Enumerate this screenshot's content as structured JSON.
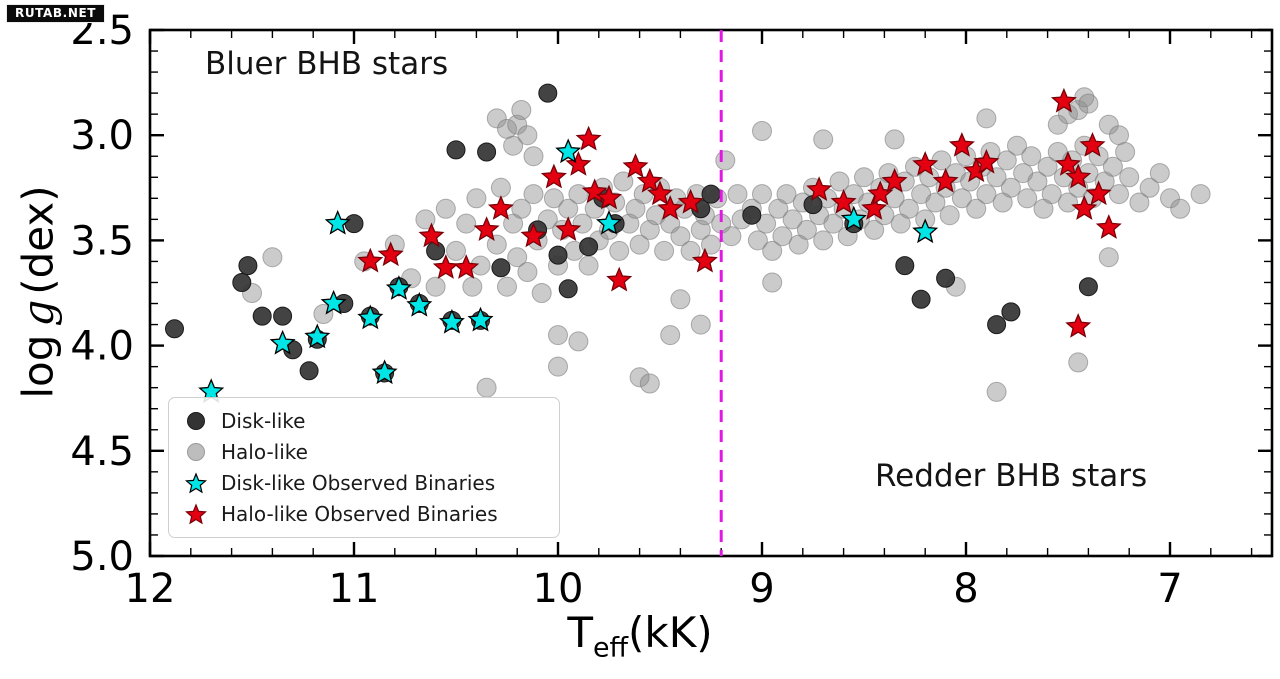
{
  "watermark": "RUTAB.NET",
  "annotations": {
    "left": "Bluer BHB stars",
    "right": "Redder BHB stars"
  },
  "axes": {
    "x": {
      "label": {
        "base": "T",
        "sub": "eff",
        "suffix": "(kK)"
      },
      "ticks": [
        12,
        11,
        10,
        9,
        8,
        7
      ],
      "minor_step": 0.2
    },
    "y": {
      "label": {
        "prefix": "log",
        "symbol": "g",
        "suffix": "(dex)"
      },
      "ticks": [
        2.5,
        3.0,
        3.5,
        4.0,
        4.5,
        5.0
      ],
      "minor_step": 0.1
    }
  },
  "legend": {
    "items": [
      {
        "label": "Disk-like",
        "marker": "circle",
        "color": "#333333",
        "edge": "#1a1a1a",
        "opacity": 1,
        "icon": "disk-circle-icon"
      },
      {
        "label": "Halo-like",
        "marker": "circle",
        "color": "#bdbdbd",
        "edge": "#9a9a9a",
        "opacity": 1,
        "icon": "halo-circle-icon"
      },
      {
        "label": "Disk-like Observed Binaries",
        "marker": "star",
        "color": "#00e5e5",
        "edge": "#000000",
        "opacity": 1,
        "icon": "cyan-star-icon"
      },
      {
        "label": "Halo-like Observed Binaries",
        "marker": "star",
        "color": "#e30010",
        "edge": "#7a0008",
        "opacity": 1,
        "icon": "red-star-icon"
      }
    ]
  },
  "chart_data": {
    "type": "scatter",
    "title": "",
    "xlabel": "T_eff (kK)",
    "ylabel": "log g (dex)",
    "xlim": [
      12.0,
      6.5
    ],
    "ylim": [
      5.0,
      2.5
    ],
    "x_axis_inverted": true,
    "y_axis_inverted": true,
    "grid": false,
    "divider_x": 9.2,
    "divider_color": "#e317e3",
    "series": [
      {
        "id": "halo",
        "name": "Halo-like",
        "marker": "circle",
        "size": 9.5,
        "color": "#8c8c8c",
        "edge": "#7d7d7d",
        "opacity": 0.45,
        "points": [
          [
            11.5,
            3.75
          ],
          [
            11.4,
            3.58
          ],
          [
            11.15,
            3.85
          ],
          [
            10.95,
            3.6
          ],
          [
            10.8,
            3.52
          ],
          [
            10.72,
            3.68
          ],
          [
            10.65,
            3.4
          ],
          [
            10.6,
            3.72
          ],
          [
            10.55,
            3.35
          ],
          [
            10.5,
            3.55
          ],
          [
            10.45,
            3.42
          ],
          [
            10.42,
            3.72
          ],
          [
            10.4,
            3.3
          ],
          [
            10.38,
            3.62
          ],
          [
            10.35,
            4.2
          ],
          [
            10.3,
            3.52
          ],
          [
            10.3,
            2.92
          ],
          [
            10.28,
            3.25
          ],
          [
            10.25,
            2.97
          ],
          [
            10.25,
            3.72
          ],
          [
            10.22,
            3.05
          ],
          [
            10.22,
            3.42
          ],
          [
            10.2,
            2.95
          ],
          [
            10.2,
            3.58
          ],
          [
            10.18,
            2.88
          ],
          [
            10.18,
            3.35
          ],
          [
            10.15,
            3.0
          ],
          [
            10.15,
            3.65
          ],
          [
            10.12,
            3.1
          ],
          [
            10.12,
            3.28
          ],
          [
            10.1,
            3.5
          ],
          [
            10.08,
            3.75
          ],
          [
            10.05,
            3.4
          ],
          [
            10.02,
            3.3
          ],
          [
            10.0,
            3.62
          ],
          [
            10.0,
            3.95
          ],
          [
            10.0,
            4.1
          ],
          [
            9.98,
            3.45
          ],
          [
            9.95,
            3.35
          ],
          [
            9.92,
            3.55
          ],
          [
            9.9,
            3.28
          ],
          [
            9.9,
            3.98
          ],
          [
            9.88,
            3.42
          ],
          [
            9.85,
            3.62
          ],
          [
            9.82,
            3.35
          ],
          [
            9.8,
            3.5
          ],
          [
            9.78,
            3.25
          ],
          [
            9.75,
            3.45
          ],
          [
            9.72,
            3.32
          ],
          [
            9.7,
            3.55
          ],
          [
            9.68,
            3.22
          ],
          [
            9.65,
            3.42
          ],
          [
            9.62,
            3.35
          ],
          [
            9.6,
            3.52
          ],
          [
            9.6,
            4.15
          ],
          [
            9.58,
            3.28
          ],
          [
            9.55,
            3.45
          ],
          [
            9.55,
            4.18
          ],
          [
            9.52,
            3.38
          ],
          [
            9.5,
            3.25
          ],
          [
            9.48,
            3.55
          ],
          [
            9.45,
            3.42
          ],
          [
            9.45,
            3.95
          ],
          [
            9.42,
            3.3
          ],
          [
            9.4,
            3.48
          ],
          [
            9.4,
            3.78
          ],
          [
            9.38,
            3.35
          ],
          [
            9.35,
            3.55
          ],
          [
            9.32,
            3.28
          ],
          [
            9.3,
            3.45
          ],
          [
            9.3,
            3.9
          ],
          [
            9.28,
            3.38
          ],
          [
            9.25,
            3.52
          ],
          [
            9.22,
            3.3
          ],
          [
            9.2,
            3.42
          ],
          [
            9.18,
            3.12
          ],
          [
            9.15,
            3.48
          ],
          [
            9.12,
            3.28
          ],
          [
            9.1,
            3.4
          ],
          [
            9.05,
            3.35
          ],
          [
            9.02,
            3.5
          ],
          [
            9.0,
            3.28
          ],
          [
            9.0,
            2.98
          ],
          [
            8.98,
            3.42
          ],
          [
            8.95,
            3.55
          ],
          [
            8.95,
            3.7
          ],
          [
            8.92,
            3.35
          ],
          [
            8.9,
            3.48
          ],
          [
            8.88,
            3.28
          ],
          [
            8.85,
            3.4
          ],
          [
            8.82,
            3.52
          ],
          [
            8.8,
            3.32
          ],
          [
            8.78,
            3.45
          ],
          [
            8.75,
            3.25
          ],
          [
            8.72,
            3.38
          ],
          [
            8.7,
            3.5
          ],
          [
            8.7,
            3.02
          ],
          [
            8.68,
            3.3
          ],
          [
            8.65,
            3.42
          ],
          [
            8.62,
            3.22
          ],
          [
            8.6,
            3.35
          ],
          [
            8.58,
            3.48
          ],
          [
            8.55,
            3.28
          ],
          [
            8.52,
            3.4
          ],
          [
            8.5,
            3.2
          ],
          [
            8.48,
            3.32
          ],
          [
            8.45,
            3.45
          ],
          [
            8.42,
            3.25
          ],
          [
            8.4,
            3.38
          ],
          [
            8.38,
            3.18
          ],
          [
            8.35,
            3.3
          ],
          [
            8.35,
            3.02
          ],
          [
            8.32,
            3.42
          ],
          [
            8.3,
            3.22
          ],
          [
            8.28,
            3.35
          ],
          [
            8.25,
            3.15
          ],
          [
            8.22,
            3.28
          ],
          [
            8.2,
            3.4
          ],
          [
            8.18,
            3.2
          ],
          [
            8.15,
            3.32
          ],
          [
            8.12,
            3.12
          ],
          [
            8.1,
            3.25
          ],
          [
            8.08,
            3.38
          ],
          [
            8.05,
            3.18
          ],
          [
            8.05,
            3.72
          ],
          [
            8.02,
            3.3
          ],
          [
            8.0,
            3.1
          ],
          [
            7.98,
            3.22
          ],
          [
            7.95,
            3.35
          ],
          [
            7.92,
            3.15
          ],
          [
            7.9,
            3.28
          ],
          [
            7.9,
            2.92
          ],
          [
            7.88,
            3.08
          ],
          [
            7.85,
            3.2
          ],
          [
            7.85,
            4.22
          ],
          [
            7.82,
            3.32
          ],
          [
            7.8,
            3.12
          ],
          [
            7.78,
            3.25
          ],
          [
            7.75,
            3.05
          ],
          [
            7.72,
            3.18
          ],
          [
            7.7,
            3.3
          ],
          [
            7.68,
            3.1
          ],
          [
            7.65,
            3.22
          ],
          [
            7.62,
            3.35
          ],
          [
            7.6,
            3.15
          ],
          [
            7.58,
            3.28
          ],
          [
            7.55,
            3.08
          ],
          [
            7.55,
            2.95
          ],
          [
            7.52,
            3.2
          ],
          [
            7.5,
            3.32
          ],
          [
            7.5,
            2.9
          ],
          [
            7.48,
            3.12
          ],
          [
            7.45,
            3.25
          ],
          [
            7.45,
            2.88
          ],
          [
            7.45,
            4.08
          ],
          [
            7.42,
            3.05
          ],
          [
            7.42,
            2.82
          ],
          [
            7.4,
            3.18
          ],
          [
            7.4,
            2.85
          ],
          [
            7.38,
            3.3
          ],
          [
            7.35,
            3.1
          ],
          [
            7.32,
            3.22
          ],
          [
            7.3,
            2.95
          ],
          [
            7.3,
            3.58
          ],
          [
            7.28,
            3.15
          ],
          [
            7.25,
            3.28
          ],
          [
            7.25,
            3.0
          ],
          [
            7.22,
            3.08
          ],
          [
            7.2,
            3.2
          ],
          [
            7.15,
            3.32
          ],
          [
            7.1,
            3.25
          ],
          [
            7.05,
            3.18
          ],
          [
            7.0,
            3.3
          ],
          [
            6.95,
            3.35
          ],
          [
            6.85,
            3.28
          ]
        ]
      },
      {
        "id": "disk",
        "name": "Disk-like",
        "marker": "circle",
        "size": 9,
        "color": "#333333",
        "edge": "#1a1a1a",
        "opacity": 0.92,
        "points": [
          [
            11.88,
            3.92
          ],
          [
            11.45,
            3.86
          ],
          [
            11.35,
            3.86
          ],
          [
            11.52,
            3.62
          ],
          [
            11.55,
            3.7
          ],
          [
            11.3,
            4.02
          ],
          [
            11.18,
            3.97
          ],
          [
            11.22,
            4.12
          ],
          [
            11.05,
            3.8
          ],
          [
            11.0,
            3.42
          ],
          [
            10.92,
            3.86
          ],
          [
            10.85,
            4.13
          ],
          [
            10.78,
            3.72
          ],
          [
            10.68,
            3.8
          ],
          [
            10.6,
            3.55
          ],
          [
            10.52,
            3.88
          ],
          [
            10.5,
            3.07
          ],
          [
            10.35,
            3.08
          ],
          [
            10.38,
            3.88
          ],
          [
            10.28,
            3.63
          ],
          [
            10.1,
            3.45
          ],
          [
            10.05,
            2.8
          ],
          [
            10.0,
            3.57
          ],
          [
            9.95,
            3.73
          ],
          [
            9.85,
            3.53
          ],
          [
            9.78,
            3.3
          ],
          [
            9.72,
            3.42
          ],
          [
            9.3,
            3.35
          ],
          [
            9.25,
            3.28
          ],
          [
            9.05,
            3.38
          ],
          [
            8.75,
            3.33
          ],
          [
            8.55,
            3.42
          ],
          [
            8.3,
            3.62
          ],
          [
            8.22,
            3.78
          ],
          [
            8.1,
            3.68
          ],
          [
            7.85,
            3.9
          ],
          [
            7.78,
            3.84
          ],
          [
            7.4,
            3.72
          ]
        ]
      },
      {
        "id": "halo-binaries",
        "name": "Halo-like Observed Binaries",
        "marker": "star",
        "size": 12,
        "color": "#e30010",
        "edge": "#7a0008",
        "opacity": 1,
        "points": [
          [
            10.92,
            3.6
          ],
          [
            10.82,
            3.57
          ],
          [
            10.62,
            3.48
          ],
          [
            10.55,
            3.63
          ],
          [
            10.45,
            3.63
          ],
          [
            10.35,
            3.45
          ],
          [
            10.28,
            3.35
          ],
          [
            10.12,
            3.48
          ],
          [
            10.02,
            3.2
          ],
          [
            9.95,
            3.45
          ],
          [
            9.9,
            3.14
          ],
          [
            9.85,
            3.02
          ],
          [
            9.82,
            3.27
          ],
          [
            9.75,
            3.3
          ],
          [
            9.7,
            3.69
          ],
          [
            9.62,
            3.15
          ],
          [
            9.55,
            3.22
          ],
          [
            9.5,
            3.28
          ],
          [
            9.45,
            3.35
          ],
          [
            9.35,
            3.32
          ],
          [
            9.28,
            3.6
          ],
          [
            8.72,
            3.26
          ],
          [
            8.6,
            3.32
          ],
          [
            8.45,
            3.35
          ],
          [
            8.42,
            3.28
          ],
          [
            8.35,
            3.22
          ],
          [
            8.2,
            3.14
          ],
          [
            8.1,
            3.22
          ],
          [
            8.02,
            3.05
          ],
          [
            7.95,
            3.17
          ],
          [
            7.9,
            3.13
          ],
          [
            7.52,
            2.84
          ],
          [
            7.5,
            3.14
          ],
          [
            7.45,
            3.2
          ],
          [
            7.42,
            3.35
          ],
          [
            7.38,
            3.05
          ],
          [
            7.35,
            3.28
          ],
          [
            7.3,
            3.44
          ],
          [
            7.45,
            3.91
          ]
        ]
      },
      {
        "id": "disk-binaries",
        "name": "Disk-like Observed Binaries",
        "marker": "star",
        "size": 12,
        "color": "#00e5e5",
        "edge": "#000000",
        "opacity": 1,
        "points": [
          [
            11.7,
            4.22
          ],
          [
            11.35,
            3.99
          ],
          [
            11.18,
            3.96
          ],
          [
            11.1,
            3.8
          ],
          [
            11.08,
            3.42
          ],
          [
            10.92,
            3.87
          ],
          [
            10.85,
            4.13
          ],
          [
            10.78,
            3.73
          ],
          [
            10.68,
            3.81
          ],
          [
            10.52,
            3.89
          ],
          [
            10.38,
            3.88
          ],
          [
            9.95,
            3.08
          ],
          [
            9.75,
            3.42
          ],
          [
            8.55,
            3.4
          ],
          [
            8.2,
            3.46
          ]
        ]
      }
    ]
  }
}
